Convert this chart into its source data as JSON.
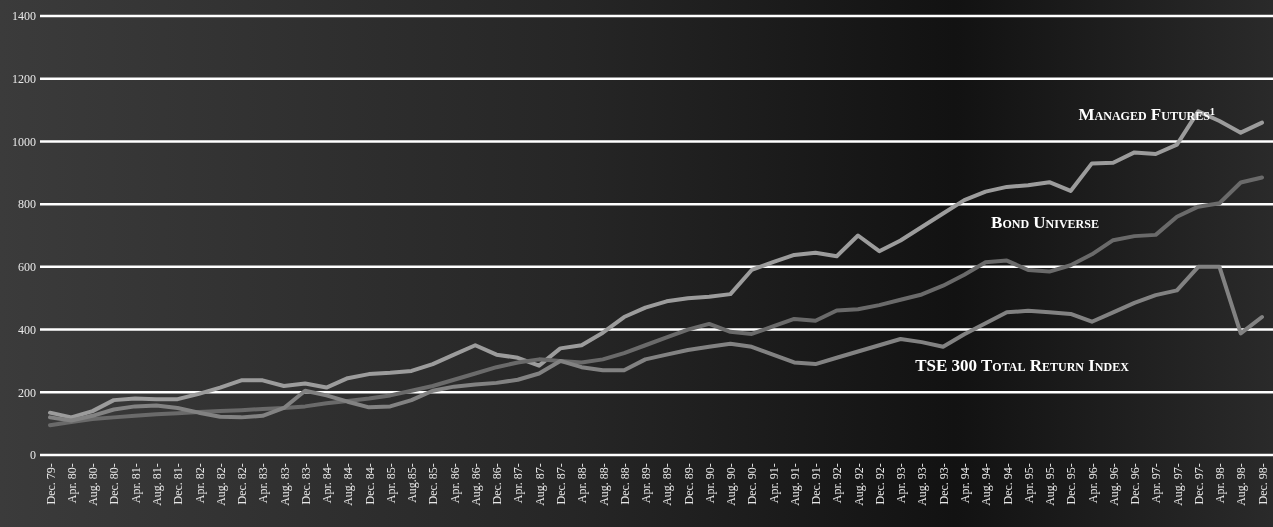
{
  "chart_data": {
    "type": "line",
    "categories": [
      "Dec. 79-",
      "Apr. 80-",
      "Aug. 80-",
      "Dec. 80-",
      "Apr. 81-",
      "Aug. 81-",
      "Dec. 81-",
      "Apr. 82-",
      "Aug. 82-",
      "Dec. 82-",
      "Apr. 83-",
      "Aug. 83-",
      "Dec. 83-",
      "Apr. 84-",
      "Aug. 84-",
      "Dec. 84-",
      "Apr. 85-",
      "Aug.85-",
      "Dec. 85-",
      "Apr. 86-",
      "Aug. 86-",
      "Dec. 86-",
      "Apr. 87-",
      "Aug. 87-",
      "Dec. 87-",
      "Apr. 88-",
      "Aug. 88-",
      "Dec. 88-",
      "Apr. 89-",
      "Aug. 89-",
      "Dec. 89-",
      "Apr. 90-",
      "Aug. 90-",
      "Dec. 90-",
      "Apr. 91-",
      "Aug. 91-",
      "Dec. 91-",
      "Apr. 92-",
      "Aug. 92-",
      "Dec. 92-",
      "Apr. 93-",
      "Aug. 93-",
      "Dec. 93-",
      "Apr. 94-",
      "Aug. 94-",
      "Dec. 94-",
      "Apr. 95-",
      "Aug. 95-",
      "Dec. 95-",
      "Apr. 96-",
      "Aug. 96-",
      "Dec. 96-",
      "Apr. 97-",
      "Aug. 97-",
      "Dec. 97-",
      "Apr. 98-",
      "Aug. 98-",
      "Dec. 98-"
    ],
    "series": [
      {
        "name": "Managed Futures¹",
        "color": "#9c9c9c",
        "values": [
          135,
          120,
          140,
          175,
          180,
          178,
          178,
          195,
          215,
          238,
          238,
          220,
          228,
          215,
          245,
          258,
          262,
          268,
          290,
          320,
          350,
          320,
          310,
          285,
          340,
          350,
          390,
          440,
          470,
          490,
          500,
          505,
          513,
          590,
          615,
          638,
          645,
          634,
          700,
          650,
          684,
          727,
          770,
          813,
          840,
          855,
          860,
          870,
          842,
          930,
          932,
          965,
          960,
          990,
          1096,
          1065,
          1028,
          1060
        ]
      },
      {
        "name": "Bond Universe",
        "color": "#6a6a6a",
        "values": [
          95,
          105,
          115,
          120,
          125,
          130,
          133,
          137,
          140,
          143,
          147,
          150,
          155,
          165,
          172,
          180,
          190,
          205,
          220,
          240,
          260,
          280,
          295,
          305,
          300,
          295,
          305,
          325,
          350,
          375,
          400,
          418,
          393,
          386,
          410,
          434,
          428,
          461,
          465,
          478,
          495,
          512,
          540,
          575,
          615,
          620,
          590,
          585,
          605,
          640,
          685,
          698,
          702,
          760,
          792,
          803,
          869,
          885
        ]
      },
      {
        "name": "TSE 300 Total Return Index",
        "color": "#828282",
        "values": [
          120,
          110,
          125,
          145,
          155,
          158,
          150,
          135,
          122,
          120,
          125,
          150,
          205,
          190,
          170,
          152,
          155,
          175,
          205,
          218,
          225,
          230,
          240,
          260,
          300,
          280,
          270,
          270,
          305,
          320,
          335,
          345,
          355,
          345,
          320,
          295,
          290,
          310,
          330,
          350,
          370,
          360,
          345,
          385,
          420,
          455,
          460,
          455,
          450,
          425,
          455,
          485,
          510,
          525,
          600,
          600,
          388,
          440
        ]
      }
    ],
    "ylim": [
      0,
      1400
    ],
    "yticks": [
      0,
      200,
      400,
      600,
      800,
      1000,
      1200,
      1400
    ],
    "grid": "y"
  }
}
